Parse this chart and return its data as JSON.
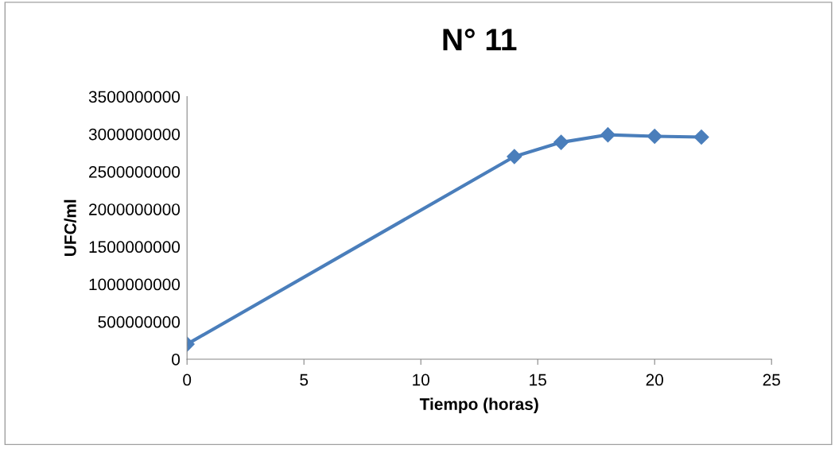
{
  "chart_data": {
    "type": "line",
    "title": "N° 11",
    "xlabel": "Tiempo (horas)",
    "ylabel": "UFC/ml",
    "x": [
      0,
      14,
      16,
      18,
      20,
      22
    ],
    "series": [
      {
        "color": "#4a7ebb",
        "values": [
          200000000,
          2700000000,
          2890000000,
          2990000000,
          2970000000,
          2960000000
        ]
      }
    ],
    "xlim": [
      0,
      25
    ],
    "xticks": [
      0,
      5,
      10,
      15,
      20,
      25
    ],
    "ylim": [
      0,
      3500000000
    ],
    "yticks": [
      0,
      500000000,
      1000000000,
      1500000000,
      2000000000,
      2500000000,
      3000000000,
      3500000000
    ],
    "grid": false,
    "legend": false,
    "marker": "diamond",
    "line_style": "solid"
  }
}
